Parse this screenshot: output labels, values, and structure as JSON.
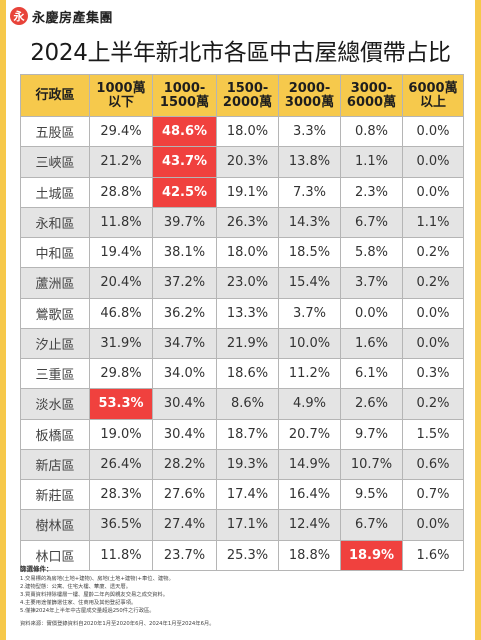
{
  "brand": {
    "logo_mark": "永",
    "name": "永慶房產集團",
    "accent": "#e8433a"
  },
  "colors": {
    "header_bg": "#f6c94c",
    "highlight": "#f0413e",
    "shade": "#e4e4e4",
    "page_bg": "#f6c84a"
  },
  "chart_data": {
    "type": "table",
    "title": "2024上半年新北市各區中古屋總價帶占比",
    "columns": [
      "行政區",
      "1000萬\n以下",
      "1000-\n1500萬",
      "1500-\n2000萬",
      "2000-\n3000萬",
      "3000-\n6000萬",
      "6000萬\n以上"
    ],
    "rows": [
      {
        "district": "五股區",
        "values": [
          "29.4%",
          "48.6%",
          "18.0%",
          "3.3%",
          "0.8%",
          "0.0%"
        ],
        "highlight": 1
      },
      {
        "district": "三峽區",
        "values": [
          "21.2%",
          "43.7%",
          "20.3%",
          "13.8%",
          "1.1%",
          "0.0%"
        ],
        "highlight": 1
      },
      {
        "district": "土城區",
        "values": [
          "28.8%",
          "42.5%",
          "19.1%",
          "7.3%",
          "2.3%",
          "0.0%"
        ],
        "highlight": 1
      },
      {
        "district": "永和區",
        "values": [
          "11.8%",
          "39.7%",
          "26.3%",
          "14.3%",
          "6.7%",
          "1.1%"
        ],
        "highlight": -1
      },
      {
        "district": "中和區",
        "values": [
          "19.4%",
          "38.1%",
          "18.0%",
          "18.5%",
          "5.8%",
          "0.2%"
        ],
        "highlight": -1
      },
      {
        "district": "蘆洲區",
        "values": [
          "20.4%",
          "37.2%",
          "23.0%",
          "15.4%",
          "3.7%",
          "0.2%"
        ],
        "highlight": -1
      },
      {
        "district": "鶯歌區",
        "values": [
          "46.8%",
          "36.2%",
          "13.3%",
          "3.7%",
          "0.0%",
          "0.0%"
        ],
        "highlight": -1
      },
      {
        "district": "汐止區",
        "values": [
          "31.9%",
          "34.7%",
          "21.9%",
          "10.0%",
          "1.6%",
          "0.0%"
        ],
        "highlight": -1
      },
      {
        "district": "三重區",
        "values": [
          "29.8%",
          "34.0%",
          "18.6%",
          "11.2%",
          "6.1%",
          "0.3%"
        ],
        "highlight": -1
      },
      {
        "district": "淡水區",
        "values": [
          "53.3%",
          "30.4%",
          "8.6%",
          "4.9%",
          "2.6%",
          "0.2%"
        ],
        "highlight": 0
      },
      {
        "district": "板橋區",
        "values": [
          "19.0%",
          "30.4%",
          "18.7%",
          "20.7%",
          "9.7%",
          "1.5%"
        ],
        "highlight": -1
      },
      {
        "district": "新店區",
        "values": [
          "26.4%",
          "28.2%",
          "19.3%",
          "14.9%",
          "10.7%",
          "0.6%"
        ],
        "highlight": -1
      },
      {
        "district": "新莊區",
        "values": [
          "28.3%",
          "27.6%",
          "17.4%",
          "16.4%",
          "9.5%",
          "0.7%"
        ],
        "highlight": -1
      },
      {
        "district": "樹林區",
        "values": [
          "36.5%",
          "27.4%",
          "17.1%",
          "12.4%",
          "6.7%",
          "0.0%"
        ],
        "highlight": -1
      },
      {
        "district": "林口區",
        "values": [
          "11.8%",
          "23.7%",
          "25.3%",
          "18.8%",
          "18.9%",
          "1.6%"
        ],
        "highlight": 4
      }
    ]
  },
  "notes": {
    "title": "篩選條件：",
    "items": [
      "1.交易標的為房地(土地+建物)、房地(土地+建物)+車位、建物。",
      "2.建物型態：公寓、住宅大樓、華廈、透天厝。",
      "3.買賣資料排除樓層一樓、屋齡二年內與親友交易之成交資料。",
      "4.主要用途僅篩選住家、住商用及其他登記事項。",
      "5.僅揀2024年上半年中古屋成交量超過250件之行政區。"
    ],
    "source": "資料來源：實價登錄資料自2020年1月至2020年6月、2024年1月至2024年6月。"
  }
}
